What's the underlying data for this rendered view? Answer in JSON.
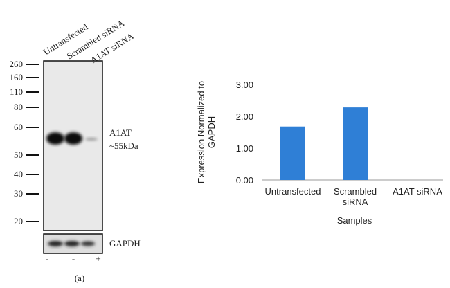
{
  "blot": {
    "lanes": [
      "Untransfected",
      "Scrambled siRNA",
      "A1AT siRNA"
    ],
    "markers": [
      260,
      160,
      110,
      80,
      60,
      50,
      40,
      30,
      20
    ],
    "band_label": "A1AT",
    "band_size": "~55kDa",
    "loading_control": "GAPDH",
    "treatment": [
      "-",
      "-",
      "+"
    ],
    "caption": "(a)"
  },
  "chart_data": {
    "type": "bar",
    "y_label": "Expression Normalized to GAPDH",
    "x_label": "Samples",
    "categories": [
      "Untransfected",
      "Scrambled siRNA",
      "A1AT siRNA"
    ],
    "values": [
      1.68,
      2.28,
      0
    ],
    "color": "#2f7fd6",
    "ylim": [
      0,
      3
    ],
    "yticks": [
      {
        "value": 0,
        "label": "0.00"
      },
      {
        "value": 1,
        "label": "1.00"
      },
      {
        "value": 2,
        "label": "2.00"
      },
      {
        "value": 3,
        "label": "3.00"
      }
    ],
    "grid": false
  }
}
